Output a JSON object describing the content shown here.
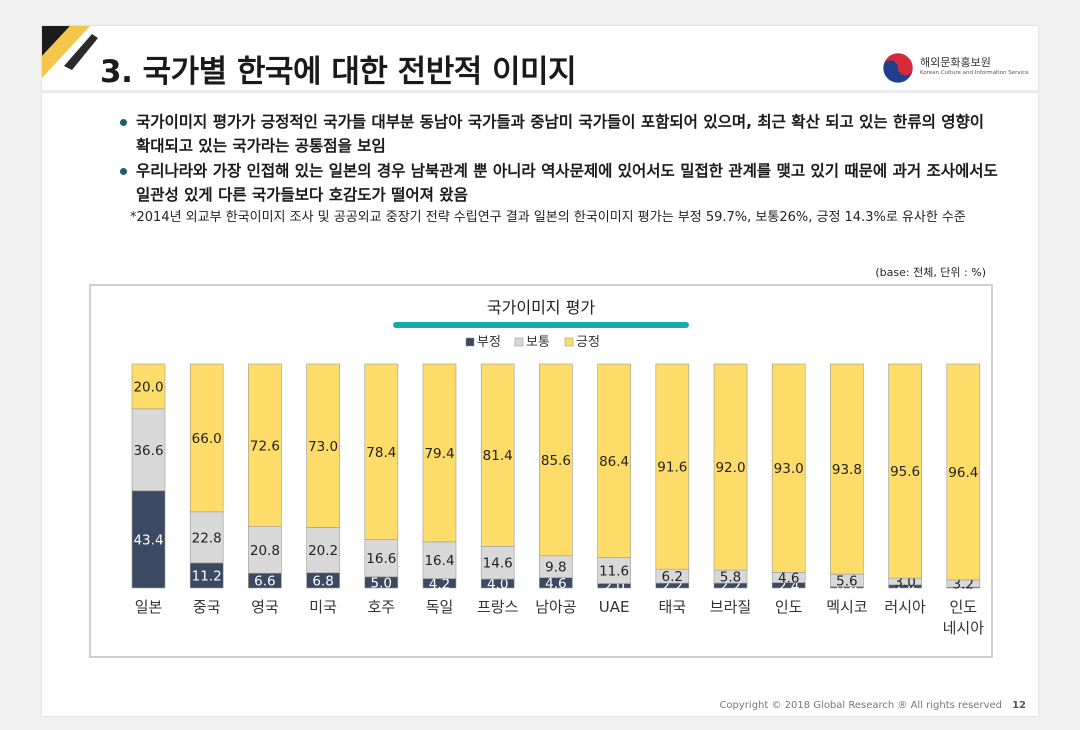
{
  "header": {
    "title": "3. 국가별 한국에 대한 전반적 이미지",
    "logo_name": "해외문화홍보원",
    "logo_subtitle": "Korean Culture and Information Service"
  },
  "bullets": [
    "국가이미지 평가가 긍정적인 국가들 대부분 동남아 국가들과 중남미 국가들이 포함되어 있으며, 최근 확산 되고 있는 한류의 영향이 확대되고 있는 국가라는 공통점을 보임",
    "우리나라와 가장 인접해 있는 일본의 경우 남북관계 뿐 아니라 역사문제에 있어서도 밀접한 관계를 맺고 있기 때문에 과거 조사에서도 일관성 있게 다른 국가들보다 호감도가 떨어져 왔음"
  ],
  "note": "*2014년 외교부 한국이미지 조사 및 공공외교 중장기 전략 수립연구 결과 일본의 한국이미지 평가는 부정 59.7%, 보통26%, 긍정 14.3%로 유사한 수준",
  "base_note": "(base: 전체, 단위 : %)",
  "footer": {
    "copyright": "Copyright © 2018 Global Research ® All rights reserved",
    "page_number": "12"
  },
  "colors": {
    "negative": "#3b4a62",
    "neutral": "#d8d8d8",
    "positive": "#fedc6a",
    "accent_bar": "#19a9a9"
  },
  "chart_data": {
    "type": "bar",
    "stacked": true,
    "percent_stacked": true,
    "title": "국가이미지 평가",
    "legend_position": "top",
    "categories": [
      "일본",
      "중국",
      "영국",
      "미국",
      "호주",
      "독일",
      "프랑스",
      "남아공",
      "UAE",
      "태국",
      "브라질",
      "인도",
      "멕시코",
      "러시아",
      "인도\n네시아"
    ],
    "series": [
      {
        "name": "부정",
        "color": "#3b4a62",
        "values": [
          43.4,
          11.2,
          6.6,
          6.8,
          5.0,
          4.2,
          4.0,
          4.6,
          2.0,
          2.2,
          2.2,
          2.4,
          0.6,
          1.4,
          0.4
        ]
      },
      {
        "name": "보통",
        "color": "#d8d8d8",
        "values": [
          36.6,
          22.8,
          20.8,
          20.2,
          16.6,
          16.4,
          14.6,
          9.8,
          11.6,
          6.2,
          5.8,
          4.6,
          5.6,
          3.0,
          3.2
        ]
      },
      {
        "name": "긍정",
        "color": "#fedc6a",
        "values": [
          20.0,
          66.0,
          72.6,
          73.0,
          78.4,
          79.4,
          81.4,
          85.6,
          86.4,
          91.6,
          92.0,
          93.0,
          93.8,
          95.6,
          96.4
        ]
      }
    ],
    "ylim": [
      0,
      100
    ],
    "grid": false
  }
}
